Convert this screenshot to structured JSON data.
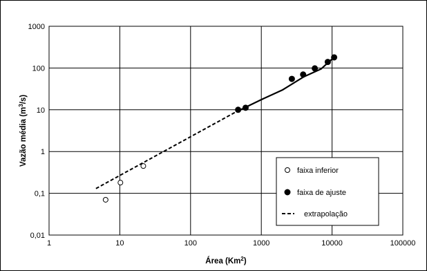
{
  "chart_data": {
    "type": "scatter",
    "xscale": "log",
    "yscale": "log",
    "xlim": [
      1,
      100000
    ],
    "ylim": [
      0.01,
      1000
    ],
    "grid": true,
    "legend_position": "bottom-right",
    "x_ticks": [
      "1",
      "10",
      "100",
      "1000",
      "10000",
      "100000"
    ],
    "y_ticks": [
      "0,01",
      "0,1",
      "1",
      "10",
      "100",
      "1000"
    ],
    "xlabel": {
      "text": "Área (Km",
      "sup": "2",
      "end": ")"
    },
    "ylabel": {
      "text": "Vazão média (m",
      "sup": "3",
      "end": "/s)"
    },
    "series": [
      {
        "name": "faixa inferior",
        "marker": "open-circle",
        "points": [
          [
            6.3,
            0.07
          ],
          [
            10.2,
            0.18
          ],
          [
            21.5,
            0.45
          ]
        ]
      },
      {
        "name": "faixa de ajuste",
        "marker": "filled-circle",
        "points": [
          [
            470,
            10
          ],
          [
            600,
            11.2
          ],
          [
            2700,
            55
          ],
          [
            3900,
            70
          ],
          [
            5700,
            98
          ],
          [
            8700,
            140
          ],
          [
            10700,
            180
          ]
        ]
      },
      {
        "name": "extrapolação",
        "style": "dashed-line",
        "points": [
          [
            4.6,
            0.13
          ],
          [
            470,
            9.5
          ]
        ]
      }
    ],
    "fit_line": {
      "style": "solid",
      "points": [
        [
          450,
          9.0
        ],
        [
          600,
          11.5
        ],
        [
          1000,
          17.5
        ],
        [
          2000,
          30
        ],
        [
          4000,
          62
        ],
        [
          7000,
          95
        ],
        [
          11000,
          190
        ]
      ]
    }
  },
  "colors": {
    "ink": "#000000",
    "background": "#ffffff",
    "grid": "#000000"
  }
}
